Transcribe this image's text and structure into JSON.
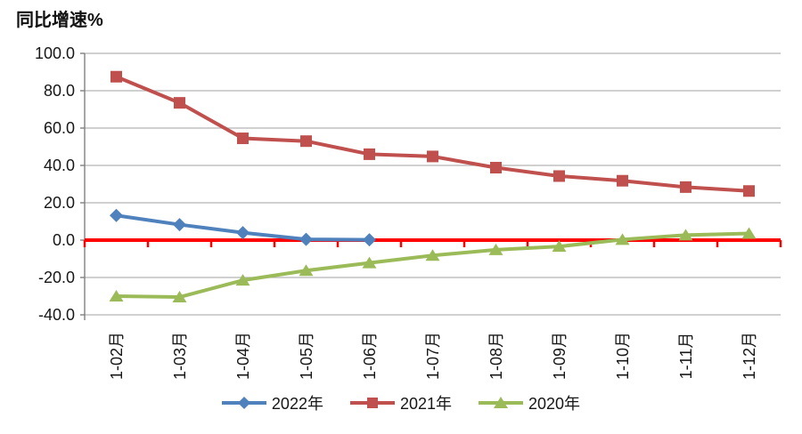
{
  "chart_data": {
    "type": "line",
    "title": "同比增速%",
    "categories": [
      "1-02月",
      "1-03月",
      "1-04月",
      "1-05月",
      "1-06月",
      "1-07月",
      "1-08月",
      "1-09月",
      "1-10月",
      "1-11月",
      "1-12月"
    ],
    "series": [
      {
        "name": "2022年",
        "color": "#4F81BD",
        "marker": "diamond",
        "values": [
          13.2,
          8.3,
          4.0,
          0.4,
          0.2,
          null,
          null,
          null,
          null,
          null,
          null
        ]
      },
      {
        "name": "2021年",
        "color": "#C0504D",
        "marker": "square",
        "values": [
          87.5,
          73.5,
          54.5,
          53.0,
          46.0,
          44.8,
          38.8,
          34.3,
          31.8,
          28.4,
          26.3
        ]
      },
      {
        "name": "2020年",
        "color": "#9BBB59",
        "marker": "triangle",
        "values": [
          -30.0,
          -30.5,
          -21.5,
          -16.3,
          -12.2,
          -8.2,
          -5.2,
          -3.4,
          0.3,
          2.7,
          3.6
        ]
      }
    ],
    "ylim": [
      -40,
      100
    ],
    "ytick_step": 20,
    "ytick_labels": [
      "100.0",
      "80.0",
      "60.0",
      "40.0",
      "20.0",
      "0.0",
      "-20.0",
      "-40.0"
    ],
    "grid": true,
    "gridline_color": "#B3B3B3",
    "axis_line_color": "#808080",
    "zero_line_color": "#FF0000",
    "legend_position": "bottom"
  }
}
